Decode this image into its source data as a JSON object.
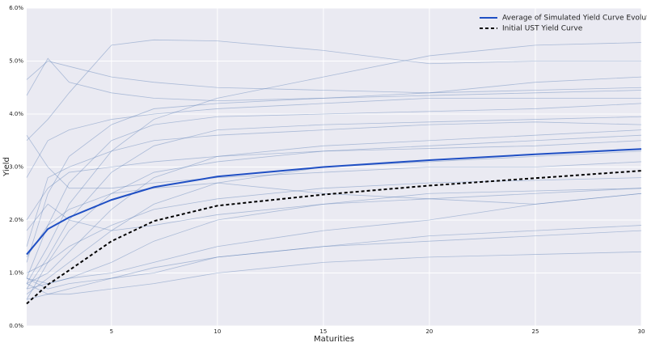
{
  "chart_data": {
    "type": "line",
    "x_label": "Maturities",
    "y_label": "Yield",
    "x": [
      1,
      2,
      3,
      5,
      7,
      10,
      15,
      20,
      25,
      30
    ],
    "xlim": [
      1,
      30
    ],
    "xticks": [
      5,
      10,
      15,
      20,
      25,
      30
    ],
    "ylim": [
      0,
      6
    ],
    "yticks": [
      {
        "value": 0,
        "label": "0.0%"
      },
      {
        "value": 1,
        "label": "1.0%"
      },
      {
        "value": 2,
        "label": "2.0%"
      },
      {
        "value": 3,
        "label": "3.0%"
      },
      {
        "value": 4,
        "label": "4.0%"
      },
      {
        "value": 5,
        "label": "5.0%"
      },
      {
        "value": 6,
        "label": "6.0%"
      }
    ],
    "grid": true,
    "legend": "upper right",
    "series": [
      {
        "color": "#4c72b0",
        "values": [
          4.65,
          5.0,
          4.9,
          4.7,
          4.6,
          4.5,
          4.45,
          4.4,
          4.45,
          4.5
        ]
      },
      {
        "color": "#4c72b0",
        "values": [
          4.35,
          5.05,
          4.6,
          4.4,
          4.3,
          4.25,
          4.3,
          4.35,
          4.4,
          4.45
        ]
      },
      {
        "color": "#4c72b0",
        "values": [
          3.5,
          3.9,
          4.4,
          5.3,
          5.4,
          5.38,
          5.2,
          4.95,
          5.0,
          5.0
        ]
      },
      {
        "color": "#4c72b0",
        "values": [
          0.8,
          1.5,
          2.3,
          3.3,
          3.9,
          4.3,
          4.7,
          5.1,
          5.3,
          5.35
        ]
      },
      {
        "color": "#4c72b0",
        "values": [
          1.2,
          2.5,
          3.2,
          3.8,
          4.1,
          4.2,
          4.3,
          4.4,
          4.6,
          4.7
        ]
      },
      {
        "color": "#4c72b0",
        "values": [
          0.9,
          1.9,
          2.7,
          3.5,
          3.8,
          3.95,
          4.0,
          4.05,
          4.1,
          4.2
        ]
      },
      {
        "color": "#4c72b0",
        "values": [
          0.7,
          1.3,
          2.0,
          2.9,
          3.4,
          3.7,
          3.8,
          3.85,
          3.9,
          3.95
        ]
      },
      {
        "color": "#4c72b0",
        "values": [
          1.5,
          2.8,
          3.0,
          3.3,
          3.5,
          3.6,
          3.7,
          3.8,
          3.85,
          3.8
        ]
      },
      {
        "color": "#4c72b0",
        "values": [
          0.8,
          1.0,
          1.4,
          2.2,
          2.8,
          3.2,
          3.4,
          3.5,
          3.6,
          3.7
        ]
      },
      {
        "color": "#4c72b0",
        "values": [
          2.0,
          2.6,
          2.9,
          3.0,
          3.1,
          3.2,
          3.3,
          3.35,
          3.4,
          3.5
        ]
      },
      {
        "color": "#4c72b0",
        "values": [
          0.6,
          0.9,
          1.2,
          1.8,
          2.3,
          2.7,
          3.0,
          3.1,
          3.2,
          3.3
        ]
      },
      {
        "color": "#4c72b0",
        "values": [
          1.0,
          1.2,
          1.5,
          1.9,
          2.2,
          2.4,
          2.6,
          2.7,
          2.75,
          2.8
        ]
      },
      {
        "color": "#4c72b0",
        "values": [
          0.9,
          0.8,
          0.9,
          1.2,
          1.6,
          2.0,
          2.3,
          2.5,
          2.55,
          2.6
        ]
      },
      {
        "color": "#4c72b0",
        "values": [
          0.7,
          0.8,
          0.9,
          1.0,
          1.2,
          1.5,
          1.8,
          2.0,
          2.3,
          2.5
        ]
      },
      {
        "color": "#4c72b0",
        "values": [
          0.5,
          0.6,
          0.7,
          0.9,
          1.1,
          1.3,
          1.5,
          1.7,
          1.8,
          1.9
        ]
      },
      {
        "color": "#4c72b0",
        "values": [
          0.8,
          0.6,
          0.6,
          0.7,
          0.8,
          1.0,
          1.2,
          1.3,
          1.35,
          1.4
        ]
      },
      {
        "color": "#4c72b0",
        "values": [
          0.9,
          0.7,
          0.8,
          0.9,
          1.0,
          1.3,
          1.5,
          1.6,
          1.7,
          1.8
        ]
      },
      {
        "color": "#4c72b0",
        "values": [
          3.6,
          3.0,
          2.6,
          2.6,
          2.7,
          2.8,
          2.9,
          3.0,
          3.0,
          3.1
        ]
      },
      {
        "color": "#4c72b0",
        "values": [
          2.8,
          3.5,
          3.7,
          3.9,
          4.0,
          4.1,
          4.2,
          4.3,
          4.3,
          4.3
        ]
      },
      {
        "color": "#4c72b0",
        "values": [
          1.3,
          1.9,
          2.2,
          2.5,
          2.6,
          2.7,
          2.5,
          2.4,
          2.3,
          2.5
        ]
      },
      {
        "color": "#4c72b0",
        "values": [
          0.5,
          1.2,
          1.8,
          2.5,
          2.9,
          3.1,
          3.3,
          3.4,
          3.5,
          3.6
        ]
      },
      {
        "color": "#4c72b0",
        "values": [
          1.8,
          2.3,
          2.0,
          1.8,
          1.9,
          2.1,
          2.3,
          2.4,
          2.5,
          2.6
        ]
      },
      {
        "name": "Average of Simulated Yield Curve Evolutions",
        "color": "#1f4fc4",
        "values": [
          1.35,
          1.83,
          2.05,
          2.38,
          2.62,
          2.82,
          3.0,
          3.13,
          3.24,
          3.34
        ]
      },
      {
        "name": "Initial UST Yield Curve",
        "color": "#000000",
        "linestyle": "dashed",
        "values": [
          0.42,
          0.78,
          1.05,
          1.6,
          1.98,
          2.27,
          2.48,
          2.65,
          2.79,
          2.93
        ]
      }
    ]
  }
}
